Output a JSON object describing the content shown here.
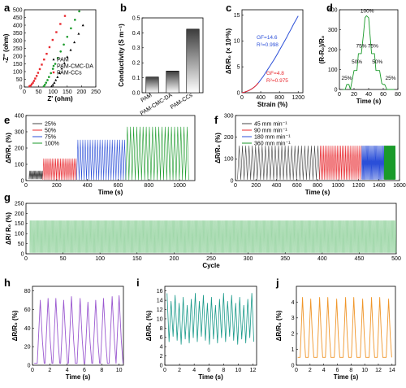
{
  "chart_data": [
    {
      "id": "a",
      "type": "scatter",
      "label": "a",
      "xlabel": "Z' (ohm)",
      "ylabel": "-Z'' (ohm)",
      "xlim": [
        0,
        250
      ],
      "ylim": [
        0,
        500
      ],
      "xticks": [
        0,
        50,
        100,
        150,
        200,
        250
      ],
      "yticks": [
        0,
        50,
        100,
        150,
        200,
        250,
        300,
        350,
        400,
        450,
        500
      ],
      "legend_position": "center-right",
      "series": [
        {
          "name": "PAM",
          "color": "#000000",
          "x": [
            95,
            100,
            105,
            110,
            116,
            123,
            131,
            140,
            150,
            162,
            175,
            190,
            205
          ],
          "y": [
            5,
            15,
            28,
            45,
            65,
            90,
            120,
            155,
            195,
            240,
            290,
            345,
            400
          ]
        },
        {
          "name": "PAM-CMC-DA",
          "color": "#1a9a2a",
          "x": [
            68,
            72,
            76,
            81,
            86,
            93,
            100,
            108,
            117,
            127,
            138,
            150,
            163,
            177,
            192
          ],
          "y": [
            5,
            15,
            28,
            45,
            65,
            90,
            118,
            150,
            188,
            230,
            275,
            325,
            380,
            435,
            490
          ]
        },
        {
          "name": "PAM-CCs",
          "color": "#e8282e",
          "x": [
            18,
            22,
            26,
            30,
            34,
            38,
            43,
            48,
            54,
            61,
            69,
            78,
            88,
            99,
            112,
            126,
            142
          ],
          "y": [
            5,
            10,
            18,
            28,
            40,
            55,
            72,
            92,
            116,
            145,
            178,
            215,
            258,
            305,
            355,
            408,
            460
          ]
        }
      ]
    },
    {
      "id": "b",
      "type": "bar",
      "label": "b",
      "ylabel": "Conductivity (S m⁻¹)",
      "ylim": [
        0,
        0.5
      ],
      "yticks": [
        0.0,
        0.1,
        0.2,
        0.3,
        0.4,
        0.5
      ],
      "categories": [
        "PAM",
        "PAM-CMC-DA",
        "PAM-CCs"
      ],
      "values": [
        0.105,
        0.145,
        0.425
      ]
    },
    {
      "id": "c",
      "type": "line",
      "label": "c",
      "xlabel": "Strain (%)",
      "ylabel": "ΔR/R₀ (× 10³%)",
      "xlim": [
        0,
        1300
      ],
      "ylim": [
        0,
        16
      ],
      "xticks": [
        0,
        400,
        800,
        1200
      ],
      "yticks": [
        0,
        5,
        10,
        15
      ],
      "color": "#2b4fd8",
      "x": [
        0,
        50,
        100,
        150,
        200,
        250,
        300,
        350,
        400,
        450,
        500,
        550,
        600,
        650,
        700,
        750,
        800,
        850,
        900,
        950,
        1000,
        1050,
        1100,
        1150,
        1200
      ],
      "y": [
        0,
        0.1,
        0.25,
        0.45,
        0.7,
        1.0,
        1.4,
        1.9,
        2.5,
        3.1,
        3.8,
        4.5,
        5.2,
        5.9,
        6.6,
        7.4,
        8.2,
        9.0,
        9.8,
        10.6,
        11.5,
        12.3,
        13.2,
        14.0,
        14.8
      ],
      "annotations": [
        {
          "text": "GF=14.6",
          "color": "#2b4fd8"
        },
        {
          "text": "R²=0.998",
          "color": "#2b4fd8"
        },
        {
          "text": "GF=4.8",
          "color": "#e8282e"
        },
        {
          "text": "R²=0.975",
          "color": "#e8282e"
        }
      ]
    },
    {
      "id": "d",
      "type": "line",
      "label": "d",
      "xlabel": "Time (s)",
      "ylabel": "(R-R₀)/R₀",
      "xlim": [
        0,
        80
      ],
      "ylim": [
        0,
        400
      ],
      "xticks": [
        0,
        20,
        40,
        60,
        80
      ],
      "yticks": [
        0,
        100,
        200,
        300,
        400
      ],
      "color": "#1a9a2a",
      "x": [
        5,
        8,
        10,
        12,
        13,
        15,
        20,
        22,
        24,
        26,
        28,
        30,
        33,
        35,
        37,
        40,
        42,
        44,
        46,
        48,
        50,
        52,
        55,
        58,
        60,
        62,
        65,
        68,
        70,
        72,
        75
      ],
      "y": [
        0,
        0,
        25,
        25,
        25,
        0,
        95,
        95,
        95,
        180,
        180,
        180,
        280,
        360,
        370,
        360,
        270,
        180,
        180,
        180,
        95,
        95,
        95,
        30,
        25,
        25,
        0,
        0,
        0,
        0,
        0
      ],
      "annotations": [
        "25%",
        "50%",
        "75%",
        "100%",
        "75%",
        "50%",
        "25%"
      ]
    },
    {
      "id": "e",
      "type": "line",
      "label": "e",
      "xlabel": "Time (s)",
      "ylabel": "ΔR/R₀ (%)",
      "xlim": [
        0,
        1100
      ],
      "ylim": [
        0,
        400
      ],
      "xticks": [
        0,
        200,
        400,
        600,
        800,
        1000
      ],
      "yticks": [
        0,
        100,
        200,
        300,
        400
      ],
      "legend_position": "top-left",
      "series": [
        {
          "name": "25%",
          "color": "#444444",
          "t": [
            20,
            110
          ],
          "min": 10,
          "max": 60,
          "cycles": 14
        },
        {
          "name": "50%",
          "color": "#e8282e",
          "t": [
            110,
            330
          ],
          "min": 5,
          "max": 135,
          "cycles": 20
        },
        {
          "name": "75%",
          "color": "#2b4fd8",
          "t": [
            330,
            650
          ],
          "min": 5,
          "max": 250,
          "cycles": 20
        },
        {
          "name": "100%",
          "color": "#1a9a2a",
          "t": [
            650,
            1060
          ],
          "min": 5,
          "max": 330,
          "cycles": 20
        }
      ]
    },
    {
      "id": "f",
      "type": "line",
      "label": "f",
      "xlabel": "Time (s)",
      "ylabel": "ΔR/R₀ (%)",
      "xlim": [
        0,
        1600
      ],
      "ylim": [
        0,
        300
      ],
      "xticks": [
        0,
        200,
        400,
        600,
        800,
        1000,
        1200,
        1400,
        1600
      ],
      "yticks": [
        0,
        100,
        200,
        300
      ],
      "legend_position": "top-left",
      "series": [
        {
          "name": "45 mm min⁻¹",
          "color": "#444444",
          "t": [
            20,
            820
          ],
          "min": 5,
          "max": 160,
          "cycles": 25
        },
        {
          "name": "90 mm min⁻¹",
          "color": "#e8282e",
          "t": [
            820,
            1230
          ],
          "min": 5,
          "max": 160,
          "cycles": 25
        },
        {
          "name": "180 mm min⁻¹",
          "color": "#2b4fd8",
          "t": [
            1230,
            1450
          ],
          "min": 5,
          "max": 160,
          "cycles": 25
        },
        {
          "name": "360 mm min⁻¹",
          "color": "#1a9a2a",
          "t": [
            1450,
            1560
          ],
          "min": 5,
          "max": 160,
          "cycles": 25
        }
      ]
    },
    {
      "id": "g",
      "type": "line",
      "label": "g",
      "xlabel": "Cycle",
      "ylabel": "ΔR/ R₀ (%)",
      "xlim": [
        0,
        500
      ],
      "ylim": [
        0,
        250
      ],
      "xticks": [
        0,
        50,
        100,
        150,
        200,
        250,
        300,
        350,
        400,
        450,
        500
      ],
      "yticks": [
        0,
        50,
        100,
        150,
        200,
        250
      ],
      "color": "#7cc98a",
      "min": 5,
      "max": 165,
      "cycles": 500,
      "t": [
        5,
        500
      ]
    },
    {
      "id": "h",
      "type": "line",
      "label": "h",
      "xlabel": "Time (s)",
      "ylabel": "ΔR/R₀ (%)",
      "xlim": [
        0,
        10.5
      ],
      "ylim": [
        0,
        85
      ],
      "xticks": [
        0,
        2,
        4,
        6,
        8,
        10
      ],
      "yticks": [
        0,
        20,
        40,
        60,
        80
      ],
      "color": "#9b59d0",
      "peaks_t": [
        0.9,
        1.8,
        2.7,
        3.6,
        4.5,
        5.5,
        6.4,
        7.3,
        8.2,
        9.2,
        10.0
      ],
      "peaks_y": [
        70,
        72,
        72,
        70,
        74,
        72,
        68,
        70,
        72,
        74,
        75
      ],
      "base": 2
    },
    {
      "id": "i",
      "type": "line",
      "label": "i",
      "xlabel": "Time (s)",
      "ylabel": "ΔR/R₀ (%)",
      "xlim": [
        0,
        12.5
      ],
      "ylim": [
        0,
        17
      ],
      "xticks": [
        0,
        2,
        4,
        6,
        8,
        10,
        12
      ],
      "yticks": [
        0,
        2,
        4,
        6,
        8,
        10,
        12,
        14,
        16
      ],
      "color": "#1a9a8a",
      "period": 0.55,
      "max": 15.5,
      "min": 4.5,
      "t": [
        0.3,
        12.2
      ]
    },
    {
      "id": "j",
      "type": "line",
      "label": "j",
      "xlabel": "Time (s)",
      "ylabel": "ΔR/R₀ (%)",
      "xlim": [
        0,
        14.5
      ],
      "ylim": [
        0,
        5
      ],
      "xticks": [
        0,
        2,
        4,
        6,
        8,
        10,
        12,
        14
      ],
      "yticks": [
        0,
        1,
        2,
        3,
        4
      ],
      "color": "#f0962a",
      "peaks_t": [
        0.9,
        2.1,
        3.4,
        4.6,
        5.9,
        7.2,
        8.4,
        9.7,
        11.0,
        12.2,
        13.5
      ],
      "peaks_y": [
        4.3,
        4.2,
        4.3,
        4.3,
        4.2,
        4.3,
        4.3,
        4.2,
        4.3,
        4.3,
        4.2
      ],
      "base": 0.5
    }
  ]
}
